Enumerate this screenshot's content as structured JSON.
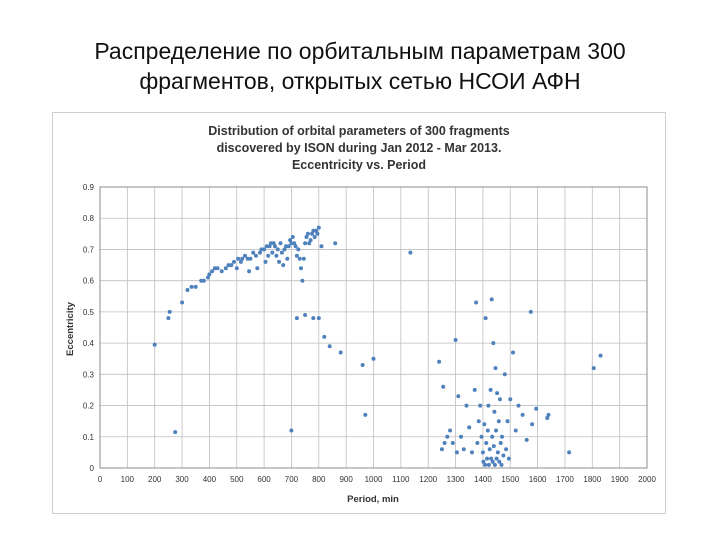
{
  "slide": {
    "title_line1": "Распределение по орбитальным параметрам 300",
    "title_line2": "фрагментов, открытых сетью НСОИ АФН"
  },
  "chart_data": {
    "type": "scatter",
    "title_lines": [
      "Distribution of orbital parameters of 300 fragments",
      "discovered by ISON during Jan 2012 - Mar 2013.",
      "Eccentricity vs. Period"
    ],
    "xlabel": "Period, min",
    "ylabel": "Eccentricity",
    "xlim": [
      0,
      2000
    ],
    "ylim": [
      0,
      0.9
    ],
    "x_ticks": [
      0,
      100,
      200,
      300,
      400,
      500,
      600,
      700,
      800,
      900,
      1000,
      1100,
      1200,
      1300,
      1400,
      1500,
      1600,
      1700,
      1800,
      1900,
      2000
    ],
    "y_ticks": [
      0,
      0.1,
      0.2,
      0.3,
      0.4,
      0.5,
      0.6,
      0.7,
      0.8,
      0.9
    ],
    "grid": true,
    "point_color": "#4f81bd",
    "points": [
      [
        200,
        0.395
      ],
      [
        275,
        0.115
      ],
      [
        300,
        0.53
      ],
      [
        250,
        0.48
      ],
      [
        255,
        0.5
      ],
      [
        320,
        0.57
      ],
      [
        335,
        0.58
      ],
      [
        350,
        0.58
      ],
      [
        370,
        0.6
      ],
      [
        380,
        0.6
      ],
      [
        395,
        0.61
      ],
      [
        400,
        0.62
      ],
      [
        410,
        0.63
      ],
      [
        420,
        0.64
      ],
      [
        430,
        0.64
      ],
      [
        445,
        0.63
      ],
      [
        460,
        0.64
      ],
      [
        470,
        0.65
      ],
      [
        480,
        0.65
      ],
      [
        490,
        0.66
      ],
      [
        500,
        0.64
      ],
      [
        505,
        0.67
      ],
      [
        515,
        0.66
      ],
      [
        520,
        0.67
      ],
      [
        530,
        0.68
      ],
      [
        540,
        0.67
      ],
      [
        545,
        0.63
      ],
      [
        550,
        0.67
      ],
      [
        560,
        0.69
      ],
      [
        570,
        0.68
      ],
      [
        575,
        0.64
      ],
      [
        585,
        0.69
      ],
      [
        590,
        0.7
      ],
      [
        600,
        0.7
      ],
      [
        605,
        0.66
      ],
      [
        610,
        0.71
      ],
      [
        615,
        0.68
      ],
      [
        620,
        0.71
      ],
      [
        625,
        0.72
      ],
      [
        630,
        0.69
      ],
      [
        635,
        0.72
      ],
      [
        640,
        0.71
      ],
      [
        645,
        0.68
      ],
      [
        650,
        0.7
      ],
      [
        655,
        0.66
      ],
      [
        660,
        0.72
      ],
      [
        665,
        0.69
      ],
      [
        670,
        0.65
      ],
      [
        675,
        0.7
      ],
      [
        680,
        0.71
      ],
      [
        685,
        0.67
      ],
      [
        690,
        0.71
      ],
      [
        695,
        0.73
      ],
      [
        700,
        0.72
      ],
      [
        705,
        0.74
      ],
      [
        710,
        0.72
      ],
      [
        715,
        0.71
      ],
      [
        720,
        0.68
      ],
      [
        725,
        0.7
      ],
      [
        730,
        0.67
      ],
      [
        735,
        0.64
      ],
      [
        740,
        0.6
      ],
      [
        745,
        0.67
      ],
      [
        750,
        0.72
      ],
      [
        755,
        0.74
      ],
      [
        760,
        0.75
      ],
      [
        765,
        0.72
      ],
      [
        770,
        0.73
      ],
      [
        775,
        0.75
      ],
      [
        780,
        0.76
      ],
      [
        785,
        0.74
      ],
      [
        790,
        0.76
      ],
      [
        795,
        0.75
      ],
      [
        800,
        0.77
      ],
      [
        810,
        0.71
      ],
      [
        860,
        0.72
      ],
      [
        700,
        0.12
      ],
      [
        720,
        0.48
      ],
      [
        750,
        0.49
      ],
      [
        780,
        0.48
      ],
      [
        800,
        0.48
      ],
      [
        820,
        0.42
      ],
      [
        840,
        0.39
      ],
      [
        880,
        0.37
      ],
      [
        960,
        0.33
      ],
      [
        970,
        0.17
      ],
      [
        1000,
        0.35
      ],
      [
        1135,
        0.69
      ],
      [
        1240,
        0.34
      ],
      [
        1250,
        0.06
      ],
      [
        1255,
        0.26
      ],
      [
        1260,
        0.08
      ],
      [
        1270,
        0.1
      ],
      [
        1280,
        0.12
      ],
      [
        1290,
        0.08
      ],
      [
        1300,
        0.41
      ],
      [
        1305,
        0.05
      ],
      [
        1310,
        0.23
      ],
      [
        1320,
        0.1
      ],
      [
        1330,
        0.06
      ],
      [
        1340,
        0.2
      ],
      [
        1350,
        0.13
      ],
      [
        1360,
        0.05
      ],
      [
        1370,
        0.25
      ],
      [
        1375,
        0.53
      ],
      [
        1380,
        0.08
      ],
      [
        1385,
        0.15
      ],
      [
        1390,
        0.2
      ],
      [
        1395,
        0.1
      ],
      [
        1400,
        0.05
      ],
      [
        1402,
        0.02
      ],
      [
        1405,
        0.14
      ],
      [
        1408,
        0.01
      ],
      [
        1410,
        0.48
      ],
      [
        1412,
        0.08
      ],
      [
        1415,
        0.03
      ],
      [
        1418,
        0.12
      ],
      [
        1420,
        0.2
      ],
      [
        1422,
        0.01
      ],
      [
        1425,
        0.06
      ],
      [
        1428,
        0.25
      ],
      [
        1430,
        0.03
      ],
      [
        1432,
        0.54
      ],
      [
        1434,
        0.1
      ],
      [
        1436,
        0.02
      ],
      [
        1438,
        0.4
      ],
      [
        1440,
        0.07
      ],
      [
        1442,
        0.18
      ],
      [
        1444,
        0.01
      ],
      [
        1446,
        0.32
      ],
      [
        1448,
        0.12
      ],
      [
        1450,
        0.03
      ],
      [
        1452,
        0.24
      ],
      [
        1455,
        0.05
      ],
      [
        1458,
        0.15
      ],
      [
        1460,
        0.02
      ],
      [
        1462,
        0.22
      ],
      [
        1465,
        0.08
      ],
      [
        1468,
        0.01
      ],
      [
        1470,
        0.1
      ],
      [
        1475,
        0.04
      ],
      [
        1480,
        0.3
      ],
      [
        1485,
        0.06
      ],
      [
        1490,
        0.15
      ],
      [
        1495,
        0.03
      ],
      [
        1500,
        0.22
      ],
      [
        1510,
        0.37
      ],
      [
        1520,
        0.12
      ],
      [
        1530,
        0.2
      ],
      [
        1545,
        0.17
      ],
      [
        1560,
        0.09
      ],
      [
        1575,
        0.5
      ],
      [
        1580,
        0.14
      ],
      [
        1595,
        0.19
      ],
      [
        1635,
        0.16
      ],
      [
        1640,
        0.17
      ],
      [
        1715,
        0.05
      ],
      [
        1805,
        0.32
      ],
      [
        1830,
        0.36
      ]
    ]
  }
}
